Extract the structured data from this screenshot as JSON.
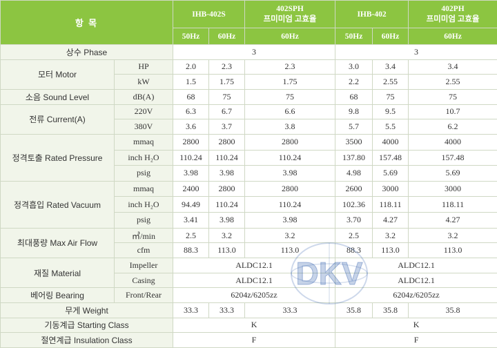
{
  "header": {
    "item": "항 목",
    "m1": "IHB-402S",
    "m2_line1": "402SPH",
    "m2_line2": "프미미엄 고효율",
    "m3": "IHB-402",
    "m4_line1": "402PH",
    "m4_line2": "프미미엄 고효율",
    "hz50": "50Hz",
    "hz60": "60Hz"
  },
  "rows": {
    "phase": {
      "label": "상수 Phase",
      "a": "3",
      "b": "3"
    },
    "motor": {
      "label": "모터 Motor",
      "hp": {
        "unit": "HP",
        "v": [
          "2.0",
          "2.3",
          "2.3",
          "3.0",
          "3.4",
          "3.4"
        ]
      },
      "kw": {
        "unit": "kW",
        "v": [
          "1.5",
          "1.75",
          "1.75",
          "2.2",
          "2.55",
          "2.55"
        ]
      }
    },
    "sound": {
      "label": "소음 Sound Level",
      "unit": "dB(A)",
      "v": [
        "68",
        "75",
        "75",
        "68",
        "75",
        "75"
      ]
    },
    "current": {
      "label": "전류 Current(A)",
      "v220": {
        "unit": "220V",
        "v": [
          "6.3",
          "6.7",
          "6.6",
          "9.8",
          "9.5",
          "10.7"
        ]
      },
      "v380": {
        "unit": "380V",
        "v": [
          "3.6",
          "3.7",
          "3.8",
          "5.7",
          "5.5",
          "6.2"
        ]
      }
    },
    "pressure": {
      "label": "정격토출 Rated Pressure",
      "mmaq": {
        "unit": "mmaq",
        "v": [
          "2800",
          "2800",
          "2800",
          "3500",
          "4000",
          "4000"
        ]
      },
      "inch": {
        "unit": "inch H₂O",
        "v": [
          "110.24",
          "110.24",
          "110.24",
          "137.80",
          "157.48",
          "157.48"
        ]
      },
      "psig": {
        "unit": "psig",
        "v": [
          "3.98",
          "3.98",
          "3.98",
          "4.98",
          "5.69",
          "5.69"
        ]
      }
    },
    "vacuum": {
      "label": "정격흡입 Rated Vacuum",
      "mmaq": {
        "unit": "mmaq",
        "v": [
          "2400",
          "2800",
          "2800",
          "2600",
          "3000",
          "3000"
        ]
      },
      "inch": {
        "unit": "inch H₂O",
        "v": [
          "94.49",
          "110.24",
          "110.24",
          "102.36",
          "118.11",
          "118.11"
        ]
      },
      "psig": {
        "unit": "psig",
        "v": [
          "3.41",
          "3.98",
          "3.98",
          "3.70",
          "4.27",
          "4.27"
        ]
      }
    },
    "airflow": {
      "label": "최대풍량 Max Air Flow",
      "m3": {
        "unit": "㎥/min",
        "v": [
          "2.5",
          "3.2",
          "3.2",
          "2.5",
          "3.2",
          "3.2"
        ]
      },
      "cfm": {
        "unit": "cfm",
        "v": [
          "88.3",
          "113.0",
          "113.0",
          "88.3",
          "113.0",
          "113.0"
        ]
      }
    },
    "material": {
      "label": "재질 Material",
      "impeller": {
        "unit": "Impeller",
        "a": "ALDC12.1",
        "b": "ALDC12.1"
      },
      "casing": {
        "unit": "Casing",
        "a": "ALDC12.1",
        "b": "ALDC12.1"
      }
    },
    "bearing": {
      "label": "베어링 Bearing",
      "unit": "Front/Rear",
      "a": "6204z/6205zz",
      "b": "6204z/6205zz"
    },
    "weight": {
      "label": "무게 Weight",
      "v": [
        "33.3",
        "33.3",
        "33.3",
        "35.8",
        "35.8",
        "35.8"
      ]
    },
    "starting": {
      "label": "기동계급 Starting Class",
      "a": "K",
      "b": "K"
    },
    "insulation": {
      "label": "절연계급 Insulation Class",
      "a": "F",
      "b": "F"
    }
  },
  "watermark": {
    "text": "DKV"
  },
  "colors": {
    "header_green": "#8cc541",
    "label_bg": "#f1f5ea",
    "border": "#cfd8c4",
    "watermark_blue": "#1c4ea3"
  }
}
